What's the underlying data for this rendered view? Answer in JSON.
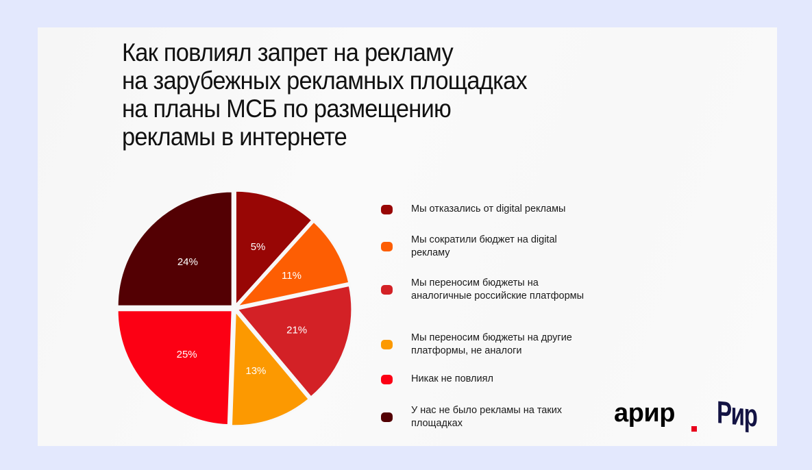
{
  "title_lines": [
    "Как повлиял запрет на рекламу",
    "на зарубежных рекламных площадках",
    "на планы МСБ по размещению",
    "рекламы в интернете"
  ],
  "legend": [
    {
      "label": "Мы отказались от digital рекламы",
      "color": "#980605"
    },
    {
      "label": "Мы сократили бюджет на digital рекламу",
      "color": "#fd5e03"
    },
    {
      "label": "Мы переносим бюджеты на аналогичные российские платформы",
      "color": "#d32126"
    },
    {
      "label": "Мы переносим бюджеты на другие платформы, не аналоги",
      "color": "#fc9901"
    },
    {
      "label": "Никак не повлиял",
      "color": "#fc0014"
    },
    {
      "label": "У нас не было рекламы на таких площадках",
      "color": "#530003"
    }
  ],
  "slice_labels": [
    "5%",
    "11%",
    "21%",
    "13%",
    "25%",
    "24%"
  ],
  "logos": {
    "arir": "арир",
    "rir": "Рир"
  },
  "colors": {
    "background": "#e3e8fd",
    "card": "#f9f9f9",
    "title": "#111111"
  },
  "chart_data": {
    "type": "pie",
    "title": "Как повлиял запрет на рекламу на зарубежных рекламных площадках на планы МСБ по размещению рекламы в интернете",
    "categories": [
      "Мы отказались от digital рекламы",
      "Мы сократили бюджет на digital рекламу",
      "Мы переносим бюджеты на аналогичные российские платформы",
      "Мы переносим бюджеты на другие платформы, не аналоги",
      "Никак не повлиял",
      "У нас не было рекламы на таких площадках"
    ],
    "values": [
      5,
      11,
      21,
      13,
      25,
      24
    ],
    "unit": "%",
    "colors": [
      "#980605",
      "#fd5e03",
      "#d32126",
      "#fc9901",
      "#fc0014",
      "#530003"
    ],
    "legend_position": "right",
    "data_labels": true,
    "start_angle": "12 o'clock, clockwise",
    "exploded": true
  }
}
